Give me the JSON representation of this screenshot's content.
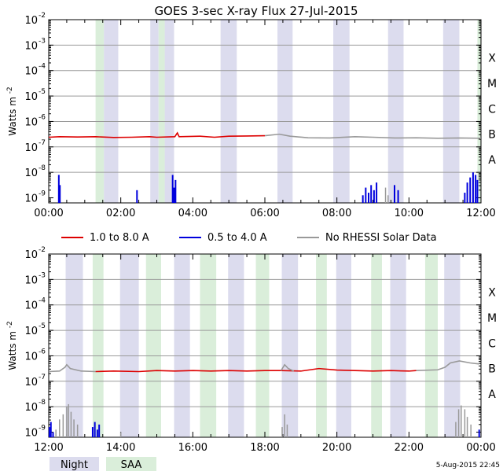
{
  "chart_data": {
    "type": "line",
    "title": "GOES 3-sec X-ray Flux   27-Jul-2015",
    "ylabel_base": "Watts m",
    "ylabel_exp": "-2",
    "y_scale": "log",
    "ylim_exp": [
      -9.2,
      -2
    ],
    "y_tick_exponents": [
      -9,
      -8,
      -7,
      -6,
      -5,
      -4,
      -3,
      -2
    ],
    "gridlines_exp": [
      -8,
      -7,
      -6,
      -5,
      -4,
      -3,
      -2
    ],
    "flare_classes": [
      {
        "label": "A",
        "exp": -8
      },
      {
        "label": "B",
        "exp": -7
      },
      {
        "label": "C",
        "exp": -6
      },
      {
        "label": "M",
        "exp": -5
      },
      {
        "label": "X",
        "exp": -4
      }
    ],
    "legend": [
      {
        "label": "1.0 to 8.0 A",
        "color": "#dd0000"
      },
      {
        "label": "0.5 to 4.0 A",
        "color": "#0000dd"
      },
      {
        "label": "No RHESSI Solar Data",
        "color": "#999999"
      }
    ],
    "band_colors": {
      "night": "#dcdcee",
      "saa": "#daeeda"
    },
    "band_legend": [
      {
        "label": "Night",
        "kind": "night"
      },
      {
        "label": "SAA",
        "kind": "saa"
      }
    ],
    "timestamp": "5-Aug-2015 22:45",
    "panels": [
      {
        "xlim_hours": [
          0,
          12
        ],
        "x_ticks": [
          {
            "h": 0,
            "label": "00:00"
          },
          {
            "h": 2,
            "label": "02:00"
          },
          {
            "h": 4,
            "label": "04:00"
          },
          {
            "h": 6,
            "label": "06:00"
          },
          {
            "h": 8,
            "label": "08:00"
          },
          {
            "h": 10,
            "label": "10:00"
          },
          {
            "h": 12,
            "label": "12:00"
          }
        ],
        "night": [
          [
            1.53,
            1.93
          ],
          [
            2.82,
            3.05
          ],
          [
            3.22,
            3.48
          ],
          [
            4.77,
            5.22
          ],
          [
            6.35,
            6.77
          ],
          [
            7.9,
            8.35
          ],
          [
            9.42,
            9.85
          ],
          [
            10.95,
            11.4
          ]
        ],
        "saa": [
          [
            1.3,
            1.53
          ],
          [
            3.05,
            3.22
          ],
          [
            11.9,
            12.0
          ]
        ],
        "long_red": [
          [
            0.0,
            -6.62
          ],
          [
            0.3,
            -6.6
          ],
          [
            0.8,
            -6.61
          ],
          [
            1.3,
            -6.6
          ],
          [
            1.8,
            -6.63
          ],
          [
            2.3,
            -6.62
          ],
          [
            2.8,
            -6.6
          ],
          [
            3.0,
            -6.62
          ],
          [
            3.5,
            -6.6
          ],
          [
            3.57,
            -6.45
          ],
          [
            3.62,
            -6.6
          ],
          [
            4.2,
            -6.58
          ],
          [
            4.6,
            -6.62
          ],
          [
            5.0,
            -6.58
          ],
          [
            5.5,
            -6.57
          ],
          [
            6.0,
            -6.56
          ]
        ],
        "long_gray": [
          [
            6.0,
            -6.56
          ],
          [
            6.4,
            -6.5
          ],
          [
            6.7,
            -6.58
          ],
          [
            7.2,
            -6.64
          ],
          [
            7.8,
            -6.65
          ],
          [
            8.5,
            -6.6
          ],
          [
            9.0,
            -6.62
          ],
          [
            9.6,
            -6.65
          ],
          [
            10.2,
            -6.64
          ],
          [
            10.8,
            -6.66
          ],
          [
            11.4,
            -6.65
          ],
          [
            12.0,
            -6.66
          ]
        ],
        "short_blue_spikes": [
          {
            "h": 0.28,
            "exp": -8.1
          },
          {
            "h": 0.31,
            "exp": -8.5
          },
          {
            "h": 2.45,
            "exp": -8.7
          },
          {
            "h": 3.44,
            "exp": -8.1
          },
          {
            "h": 3.48,
            "exp": -8.6
          },
          {
            "h": 3.52,
            "exp": -8.3
          },
          {
            "h": 8.72,
            "exp": -8.9
          },
          {
            "h": 8.8,
            "exp": -8.6
          },
          {
            "h": 8.88,
            "exp": -8.8
          },
          {
            "h": 8.95,
            "exp": -8.5
          },
          {
            "h": 9.03,
            "exp": -8.7
          },
          {
            "h": 9.1,
            "exp": -8.4
          },
          {
            "h": 9.6,
            "exp": -8.5
          },
          {
            "h": 9.7,
            "exp": -8.7
          },
          {
            "h": 11.55,
            "exp": -8.8
          },
          {
            "h": 11.62,
            "exp": -8.4
          },
          {
            "h": 11.7,
            "exp": -8.2
          },
          {
            "h": 11.78,
            "exp": -8.0
          },
          {
            "h": 11.85,
            "exp": -8.1
          },
          {
            "h": 11.9,
            "exp": -8.3
          }
        ],
        "short_gray_spikes": [
          {
            "h": 9.35,
            "exp": -8.6
          },
          {
            "h": 9.42,
            "exp": -8.9
          }
        ]
      },
      {
        "xlim_hours": [
          12,
          24
        ],
        "x_ticks": [
          {
            "h": 12,
            "label": "12:00"
          },
          {
            "h": 14,
            "label": "14:00"
          },
          {
            "h": 16,
            "label": "16:00"
          },
          {
            "h": 18,
            "label": "18:00"
          },
          {
            "h": 20,
            "label": "20:00"
          },
          {
            "h": 22,
            "label": "22:00"
          },
          {
            "h": 24,
            "label": "00:00"
          }
        ],
        "night": [
          [
            12.47,
            12.95
          ],
          [
            13.98,
            14.5
          ],
          [
            15.48,
            15.92
          ],
          [
            16.98,
            17.42
          ],
          [
            18.47,
            18.92
          ],
          [
            19.98,
            20.4
          ],
          [
            21.48,
            21.92
          ],
          [
            22.98,
            23.42
          ]
        ],
        "saa": [
          [
            13.22,
            13.52
          ],
          [
            14.7,
            15.12
          ],
          [
            16.2,
            16.65
          ],
          [
            17.75,
            18.12
          ],
          [
            19.42,
            19.72
          ],
          [
            20.95,
            21.25
          ],
          [
            22.45,
            22.8
          ]
        ],
        "long_red": [
          [
            13.3,
            -6.62
          ],
          [
            13.8,
            -6.6
          ],
          [
            14.5,
            -6.62
          ],
          [
            15.0,
            -6.58
          ],
          [
            15.5,
            -6.6
          ],
          [
            16.0,
            -6.58
          ],
          [
            16.5,
            -6.6
          ],
          [
            17.0,
            -6.58
          ],
          [
            17.5,
            -6.6
          ],
          [
            18.0,
            -6.58
          ],
          [
            18.45,
            -6.58
          ],
          [
            19.0,
            -6.6
          ],
          [
            19.5,
            -6.5
          ],
          [
            20.0,
            -6.56
          ],
          [
            20.5,
            -6.58
          ],
          [
            21.0,
            -6.6
          ],
          [
            21.5,
            -6.58
          ],
          [
            22.0,
            -6.6
          ],
          [
            22.2,
            -6.58
          ]
        ],
        "long_gray": [
          [
            12.0,
            -6.62
          ],
          [
            12.3,
            -6.6
          ],
          [
            12.45,
            -6.45
          ],
          [
            12.5,
            -6.35
          ],
          [
            12.6,
            -6.5
          ],
          [
            12.9,
            -6.6
          ],
          [
            13.3,
            -6.62
          ]
        ],
        "long_gray_2": [
          [
            18.45,
            -6.58
          ],
          [
            18.55,
            -6.35
          ],
          [
            18.65,
            -6.5
          ],
          [
            18.8,
            -6.6
          ]
        ],
        "long_gray_3": [
          [
            22.2,
            -6.58
          ],
          [
            22.8,
            -6.55
          ],
          [
            23.0,
            -6.45
          ],
          [
            23.15,
            -6.28
          ],
          [
            23.4,
            -6.2
          ],
          [
            23.7,
            -6.28
          ],
          [
            23.95,
            -6.32
          ]
        ],
        "short_blue_spikes": [
          {
            "h": 12.02,
            "exp": -8.8
          },
          {
            "h": 12.06,
            "exp": -8.6
          },
          {
            "h": 12.12,
            "exp": -9.0
          },
          {
            "h": 13.22,
            "exp": -8.8
          },
          {
            "h": 13.28,
            "exp": -8.6
          },
          {
            "h": 13.35,
            "exp": -8.9
          },
          {
            "h": 13.4,
            "exp": -8.7
          },
          {
            "h": 23.95,
            "exp": -8.9
          }
        ],
        "short_gray_spikes": [
          {
            "h": 12.2,
            "exp": -8.9
          },
          {
            "h": 12.3,
            "exp": -8.5
          },
          {
            "h": 12.4,
            "exp": -8.3
          },
          {
            "h": 12.5,
            "exp": -8.0
          },
          {
            "h": 12.55,
            "exp": -7.9
          },
          {
            "h": 12.62,
            "exp": -8.2
          },
          {
            "h": 12.7,
            "exp": -8.5
          },
          {
            "h": 12.8,
            "exp": -8.7
          },
          {
            "h": 14.0,
            "exp": -9.0
          },
          {
            "h": 18.48,
            "exp": -8.8
          },
          {
            "h": 18.55,
            "exp": -8.3
          },
          {
            "h": 18.62,
            "exp": -8.7
          },
          {
            "h": 23.3,
            "exp": -8.6
          },
          {
            "h": 23.38,
            "exp": -8.1
          },
          {
            "h": 23.45,
            "exp": -7.95
          },
          {
            "h": 23.55,
            "exp": -8.1
          },
          {
            "h": 23.62,
            "exp": -8.4
          },
          {
            "h": 23.72,
            "exp": -8.7
          }
        ]
      }
    ]
  }
}
